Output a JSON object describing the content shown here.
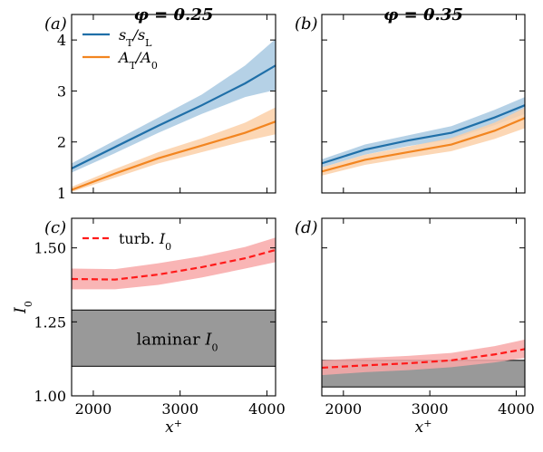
{
  "chart_data": [
    {
      "panel": "(a)",
      "title": "φ = 0.25",
      "type": "line",
      "xlabel": "",
      "ylabel": "",
      "xlim": [
        1750,
        4100
      ],
      "ylim": [
        1,
        4.5
      ],
      "xticks": [
        2000,
        3000,
        4000
      ],
      "xtick_labels_shown": false,
      "yticks": [
        1,
        2,
        3,
        4
      ],
      "ytick_labels": [
        "1",
        "2",
        "3",
        "4"
      ],
      "legend": {
        "location": "top-left",
        "entries": [
          "sT/sL",
          "AT/A0"
        ]
      },
      "series": [
        {
          "name": "sT/sL",
          "color": "#1f6fa8",
          "band_color": "#a8c9e2",
          "x": [
            1750,
            2250,
            2750,
            3250,
            3750,
            4100
          ],
          "y": [
            1.48,
            1.9,
            2.32,
            2.72,
            3.15,
            3.5
          ],
          "y_low": [
            1.4,
            1.78,
            2.18,
            2.55,
            2.88,
            3.02
          ],
          "y_high": [
            1.58,
            2.03,
            2.48,
            2.93,
            3.5,
            4.02
          ]
        },
        {
          "name": "AT/A0",
          "color": "#f28520",
          "band_color": "#fbd0a8",
          "x": [
            1750,
            2250,
            2750,
            3250,
            3750,
            4100
          ],
          "y": [
            1.06,
            1.38,
            1.68,
            1.93,
            2.18,
            2.4
          ],
          "y_low": [
            1.02,
            1.3,
            1.58,
            1.8,
            2.02,
            2.15
          ],
          "y_high": [
            1.12,
            1.47,
            1.8,
            2.07,
            2.38,
            2.68
          ]
        }
      ]
    },
    {
      "panel": "(b)",
      "title": "φ = 0.35",
      "type": "line",
      "xlim": [
        1750,
        4100
      ],
      "ylim": [
        1,
        4.5
      ],
      "xticks": [
        2000,
        3000,
        4000
      ],
      "xtick_labels_shown": false,
      "ytick_labels_shown": false,
      "series": [
        {
          "name": "sT/sL",
          "color": "#1f6fa8",
          "band_color": "#a8c9e2",
          "x": [
            1750,
            2250,
            2750,
            3250,
            3750,
            4100
          ],
          "y": [
            1.58,
            1.85,
            2.03,
            2.18,
            2.48,
            2.72
          ],
          "y_low": [
            1.5,
            1.75,
            1.92,
            2.05,
            2.33,
            2.55
          ],
          "y_high": [
            1.66,
            1.95,
            2.13,
            2.31,
            2.63,
            2.88
          ]
        },
        {
          "name": "AT/A0",
          "color": "#f28520",
          "band_color": "#fbd0a8",
          "x": [
            1750,
            2250,
            2750,
            3250,
            3750,
            4100
          ],
          "y": [
            1.42,
            1.65,
            1.8,
            1.95,
            2.22,
            2.47
          ],
          "y_low": [
            1.34,
            1.55,
            1.69,
            1.82,
            2.06,
            2.27
          ],
          "y_high": [
            1.5,
            1.75,
            1.91,
            2.08,
            2.38,
            2.67
          ]
        }
      ]
    },
    {
      "panel": "(c)",
      "type": "line",
      "xlabel": "x+",
      "ylabel": "I0",
      "xlim": [
        1750,
        4100
      ],
      "ylim": [
        1.0,
        1.6
      ],
      "xticks": [
        2000,
        3000,
        4000
      ],
      "xtick_labels": [
        "2000",
        "3000",
        "4000"
      ],
      "yticks": [
        1.0,
        1.25,
        1.5
      ],
      "ytick_labels": [
        "1.00",
        "1.25",
        "1.50"
      ],
      "legend": {
        "location": "top-left",
        "entries": [
          "turb. I0"
        ]
      },
      "laminar_band": {
        "label": "laminar I0",
        "low": 1.1,
        "high": 1.29,
        "color": "#999999"
      },
      "series": [
        {
          "name": "turb. I0",
          "style": "dashed",
          "color": "#ff1a1a",
          "band_color": "#f8a8a8",
          "x": [
            1750,
            2250,
            2750,
            3250,
            3750,
            4100
          ],
          "y": [
            1.395,
            1.393,
            1.41,
            1.435,
            1.465,
            1.493
          ],
          "y_low": [
            1.36,
            1.36,
            1.375,
            1.4,
            1.43,
            1.452
          ],
          "y_high": [
            1.43,
            1.428,
            1.448,
            1.472,
            1.503,
            1.535
          ]
        }
      ]
    },
    {
      "panel": "(d)",
      "type": "line",
      "xlabel": "x+",
      "xlim": [
        1750,
        4100
      ],
      "ylim": [
        1.0,
        1.6
      ],
      "xticks": [
        2000,
        3000,
        4000
      ],
      "xtick_labels": [
        "2000",
        "3000",
        "4000"
      ],
      "ytick_labels_shown": false,
      "laminar_band": {
        "low": 1.03,
        "high": 1.12,
        "color": "#999999"
      },
      "series": [
        {
          "name": "turb. I0",
          "style": "dashed",
          "color": "#ff1a1a",
          "band_color": "#f8a8a8",
          "x": [
            1750,
            2250,
            2750,
            3250,
            3750,
            4100
          ],
          "y": [
            1.095,
            1.103,
            1.11,
            1.12,
            1.14,
            1.158
          ],
          "y_low": [
            1.07,
            1.08,
            1.087,
            1.097,
            1.113,
            1.128
          ],
          "y_high": [
            1.12,
            1.128,
            1.135,
            1.145,
            1.168,
            1.19
          ]
        }
      ]
    }
  ]
}
